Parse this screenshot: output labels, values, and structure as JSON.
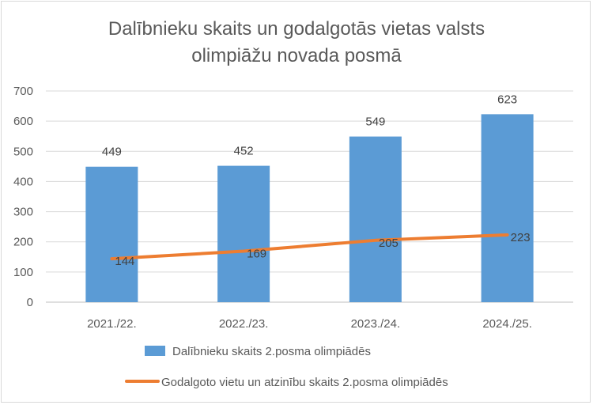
{
  "chart_data": {
    "type": "bar",
    "title_line1": "Dalībnieku skaits un godalgotās vietas valsts",
    "title_line2": "olimpiāžu novada posmā",
    "categories": [
      "2021./22.",
      "2022./23.",
      "2023./24.",
      "2024./25."
    ],
    "series": [
      {
        "name": "Dalībnieku skaits 2.posma olimpiādēs",
        "type": "bar",
        "color": "#5b9bd5",
        "values": [
          449,
          452,
          549,
          623
        ]
      },
      {
        "name": "Godalgoto vietu un atzinību skaits 2.posma olimpiādēs",
        "type": "line",
        "color": "#ed7d31",
        "values": [
          144,
          169,
          205,
          223
        ]
      }
    ],
    "y_ticks": [
      "0",
      "100",
      "200",
      "300",
      "400",
      "500",
      "600",
      "700"
    ],
    "ylim": [
      0,
      700
    ],
    "grid": true,
    "legend_position": "bottom"
  }
}
